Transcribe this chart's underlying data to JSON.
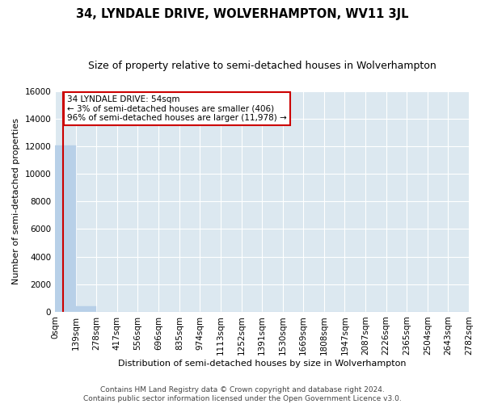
{
  "title": "34, LYNDALE DRIVE, WOLVERHAMPTON, WV11 3JL",
  "subtitle": "Size of property relative to semi-detached houses in Wolverhampton",
  "xlabel": "Distribution of semi-detached houses by size in Wolverhampton",
  "ylabel": "Number of semi-detached properties",
  "annotation_text_line1": "34 LYNDALE DRIVE: 54sqm",
  "annotation_text_line2": "← 3% of semi-detached houses are smaller (406)",
  "annotation_text_line3": "96% of semi-detached houses are larger (11,978) →",
  "footer_line1": "Contains HM Land Registry data © Crown copyright and database right 2024.",
  "footer_line2": "Contains public sector information licensed under the Open Government Licence v3.0.",
  "bin_edges": [
    0,
    139,
    278,
    417,
    556,
    696,
    835,
    974,
    1113,
    1252,
    1391,
    1530,
    1669,
    1808,
    1947,
    2087,
    2226,
    2365,
    2504,
    2643,
    2782
  ],
  "bar_heights": [
    12050,
    406,
    12,
    3,
    1,
    0,
    0,
    0,
    0,
    0,
    0,
    0,
    0,
    1,
    0,
    0,
    0,
    0,
    0,
    0
  ],
  "bar_color": "#b8d0e8",
  "bar_edgecolor": "#b8d0e8",
  "background_color": "#dce8f0",
  "property_line_color": "#cc0000",
  "annotation_box_edgecolor": "#cc0000",
  "annotation_box_facecolor": "#ffffff",
  "ylim": [
    0,
    16000
  ],
  "yticks": [
    0,
    2000,
    4000,
    6000,
    8000,
    10000,
    12000,
    14000,
    16000
  ],
  "grid_color": "#ffffff",
  "title_fontsize": 10.5,
  "subtitle_fontsize": 9,
  "axis_label_fontsize": 8,
  "tick_fontsize": 7.5,
  "annotation_fontsize": 7.5,
  "footer_fontsize": 6.5
}
